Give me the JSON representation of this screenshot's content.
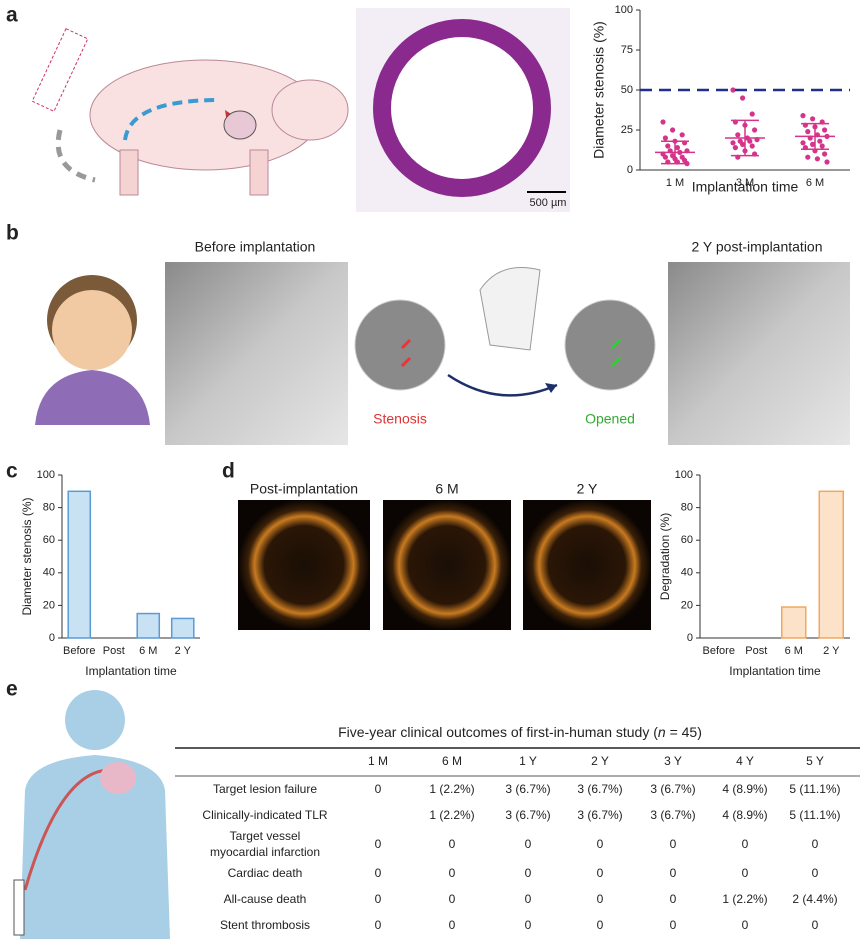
{
  "panel_letters": [
    "a",
    "b",
    "c",
    "d",
    "e"
  ],
  "scale_bar": "500 µm",
  "angio": {
    "before": "Before implantation",
    "after": "2 Y post-implantation",
    "stenosis": "Stenosis",
    "opened": "Opened"
  },
  "oct_labels": [
    "Post-implantation",
    "6 M",
    "2 Y"
  ],
  "chart_data": [
    {
      "type": "dot",
      "y_label": "Diameter stenosis (%)",
      "x_label": "Implantation time",
      "categories": [
        "1 M",
        "3 M",
        "6 M"
      ],
      "points": [
        [
          30,
          25,
          22,
          20,
          18,
          17,
          15,
          14,
          12,
          12,
          11,
          10,
          9,
          8,
          8,
          7,
          6,
          5,
          5,
          4
        ],
        [
          50,
          45,
          35,
          30,
          28,
          25,
          22,
          20,
          19,
          18,
          18,
          17,
          16,
          15,
          14,
          12,
          10,
          8
        ],
        [
          34,
          32,
          30,
          28,
          27,
          25,
          24,
          22,
          21,
          20,
          18,
          17,
          16,
          15,
          14,
          12,
          10,
          8,
          7,
          5
        ]
      ],
      "means": [
        11,
        20,
        21
      ],
      "sd": [
        7,
        11,
        8
      ],
      "reference_line": 50,
      "reference_color": "#1f2f8a",
      "color": "#d6338a",
      "ylim": [
        0,
        100
      ],
      "yticks": [
        0,
        25,
        50,
        75,
        100
      ]
    },
    {
      "type": "bar",
      "y_label": "Diameter stenosis (%)",
      "x_label": "Implantation time",
      "categories": [
        "Before",
        "Post",
        "6 M",
        "2 Y"
      ],
      "values": [
        90,
        0,
        15,
        12
      ],
      "color": "#c9e2f3",
      "edge_color": "#5b9bd5",
      "ylim": [
        0,
        100
      ],
      "yticks": [
        0,
        20,
        40,
        60,
        80,
        100
      ]
    },
    {
      "type": "bar",
      "y_label": "Degradation (%)",
      "x_label": "Implantation time",
      "categories": [
        "Before",
        "Post",
        "6 M",
        "2 Y"
      ],
      "values": [
        0,
        0,
        19,
        90
      ],
      "color": "#fbe2c8",
      "edge_color": "#f0a860",
      "ylim": [
        0,
        100
      ],
      "yticks": [
        0,
        20,
        40,
        60,
        80,
        100
      ]
    }
  ],
  "table": {
    "title_prefix": "Five-year clinical outcomes of first-in-human study (",
    "title_var": "n",
    "title_suffix": " = 45)",
    "columns": [
      "1 M",
      "6 M",
      "1 Y",
      "2 Y",
      "3 Y",
      "4 Y",
      "5 Y"
    ],
    "rows": [
      {
        "label_lines": [
          "Target lesion failure"
        ],
        "cells": [
          "0",
          "1 (2.2%)",
          "3 (6.7%)",
          "3 (6.7%)",
          "3 (6.7%)",
          "4 (8.9%)",
          "5 (11.1%)"
        ]
      },
      {
        "label_lines": [
          "Clinically-indicated TLR"
        ],
        "cells": [
          null,
          "1 (2.2%)",
          "3 (6.7%)",
          "3 (6.7%)",
          "3 (6.7%)",
          "4 (8.9%)",
          "5 (11.1%)"
        ]
      },
      {
        "label_lines": [
          "Target vessel",
          "myocardial infarction"
        ],
        "cells": [
          "0",
          "0",
          "0",
          "0",
          "0",
          "0",
          "0"
        ]
      },
      {
        "label_lines": [
          "Cardiac death"
        ],
        "cells": [
          "0",
          "0",
          "0",
          "0",
          "0",
          "0",
          "0"
        ]
      },
      {
        "label_lines": [
          "All-cause death"
        ],
        "cells": [
          "0",
          "0",
          "0",
          "0",
          "0",
          "1 (2.2%)",
          "2 (4.4%)"
        ]
      },
      {
        "label_lines": [
          "Stent thrombosis"
        ],
        "cells": [
          "0",
          "0",
          "0",
          "0",
          "0",
          "0",
          "0"
        ]
      }
    ]
  }
}
